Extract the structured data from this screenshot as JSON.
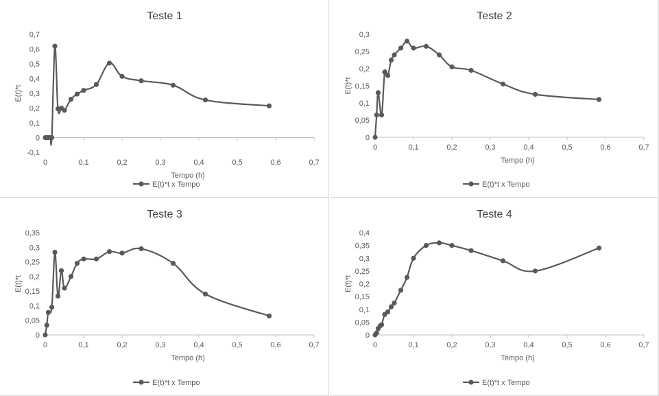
{
  "legend_label": "E(t)*t x Tempo",
  "colors": {
    "series": "#595959",
    "axis": "#bfbfbf",
    "text": "#595959",
    "title": "#404040"
  },
  "chart_data": [
    {
      "type": "line",
      "title": "Teste 1",
      "xlabel": "Tempo  (h)",
      "ylabel": "E(t)*t",
      "xlim": [
        0,
        0.7
      ],
      "ylim": [
        -0.1,
        0.7
      ],
      "xticks": [
        "0",
        "0,1",
        "0,2",
        "0,3",
        "0,4",
        "0,5",
        "0,6",
        "0,7"
      ],
      "yticks": [
        "-0,1",
        "0",
        "0,1",
        "0,2",
        "0,3",
        "0,4",
        "0,5",
        "0,6",
        "0,7"
      ],
      "legend": "bottom",
      "series": [
        {
          "name": "E(t)*t x Tempo",
          "x": [
            0,
            0.004,
            0.008,
            0.013,
            0.017,
            0.025,
            0.033,
            0.042,
            0.05,
            0.067,
            0.083,
            0.1,
            0.133,
            0.167,
            0.2,
            0.25,
            0.333,
            0.417,
            0.583
          ],
          "y": [
            0,
            0,
            0,
            0,
            0,
            0.62,
            0.195,
            0.2,
            0.185,
            0.26,
            0.295,
            0.32,
            0.36,
            0.505,
            0.415,
            0.385,
            0.355,
            0.255,
            0.215
          ]
        }
      ]
    },
    {
      "type": "line",
      "title": "Teste 2",
      "xlabel": "Tempo  (h)",
      "ylabel": "E(t)*t",
      "xlim": [
        0,
        0.7
      ],
      "ylim": [
        0,
        0.3
      ],
      "xticks": [
        "0",
        "0,1",
        "0,2",
        "0,3",
        "0,4",
        "0,5",
        "0,6",
        "0,7"
      ],
      "yticks": [
        "0",
        "0,05",
        "0,1",
        "0,15",
        "0,2",
        "0,25",
        "0,3"
      ],
      "legend": "bottom",
      "series": [
        {
          "name": "E(t)*t x Tempo",
          "x": [
            0,
            0.004,
            0.008,
            0.017,
            0.025,
            0.033,
            0.042,
            0.05,
            0.067,
            0.083,
            0.1,
            0.133,
            0.167,
            0.2,
            0.25,
            0.333,
            0.417,
            0.583
          ],
          "y": [
            0,
            0.065,
            0.13,
            0.065,
            0.19,
            0.18,
            0.225,
            0.24,
            0.26,
            0.28,
            0.26,
            0.265,
            0.24,
            0.205,
            0.195,
            0.155,
            0.125,
            0.11
          ]
        }
      ]
    },
    {
      "type": "line",
      "title": "Teste 3",
      "xlabel": "Tempo  (h)",
      "ylabel": "E(t)*t",
      "xlim": [
        0,
        0.7
      ],
      "ylim": [
        0,
        0.35
      ],
      "xticks": [
        "0",
        "0,1",
        "0,2",
        "0,3",
        "0,4",
        "0,5",
        "0,6",
        "0,7"
      ],
      "yticks": [
        "0",
        "0,05",
        "0,1",
        "0,15",
        "0,2",
        "0,25",
        "0,3",
        "0,35"
      ],
      "legend": "bottom",
      "series": [
        {
          "name": "E(t)*t x Tempo",
          "x": [
            0,
            0.004,
            0.008,
            0.017,
            0.025,
            0.033,
            0.042,
            0.05,
            0.067,
            0.083,
            0.1,
            0.133,
            0.167,
            0.2,
            0.25,
            0.333,
            0.417,
            0.583
          ],
          "y": [
            0,
            0.033,
            0.077,
            0.095,
            0.283,
            0.133,
            0.22,
            0.16,
            0.2,
            0.245,
            0.26,
            0.26,
            0.285,
            0.28,
            0.295,
            0.245,
            0.14,
            0.065
          ]
        }
      ]
    },
    {
      "type": "line",
      "title": "Teste 4",
      "xlabel": "Tempo  (h)",
      "ylabel": "E(t)*t",
      "xlim": [
        0,
        0.7
      ],
      "ylim": [
        0,
        0.4
      ],
      "xticks": [
        "0",
        "0,1",
        "0,2",
        "0,3",
        "0,4",
        "0,5",
        "0,6",
        "0,7"
      ],
      "yticks": [
        "0",
        "0,05",
        "0,1",
        "0,15",
        "0,2",
        "0,25",
        "0,3",
        "0,35",
        "0,4"
      ],
      "legend": "bottom",
      "series": [
        {
          "name": "E(t)*t x Tempo",
          "x": [
            0,
            0.004,
            0.008,
            0.013,
            0.017,
            0.025,
            0.033,
            0.042,
            0.05,
            0.067,
            0.083,
            0.1,
            0.133,
            0.167,
            0.2,
            0.25,
            0.333,
            0.417,
            0.583
          ],
          "y": [
            0,
            0.008,
            0.025,
            0.035,
            0.04,
            0.08,
            0.09,
            0.11,
            0.125,
            0.175,
            0.225,
            0.3,
            0.35,
            0.36,
            0.35,
            0.33,
            0.29,
            0.25,
            0.34
          ]
        }
      ]
    }
  ]
}
